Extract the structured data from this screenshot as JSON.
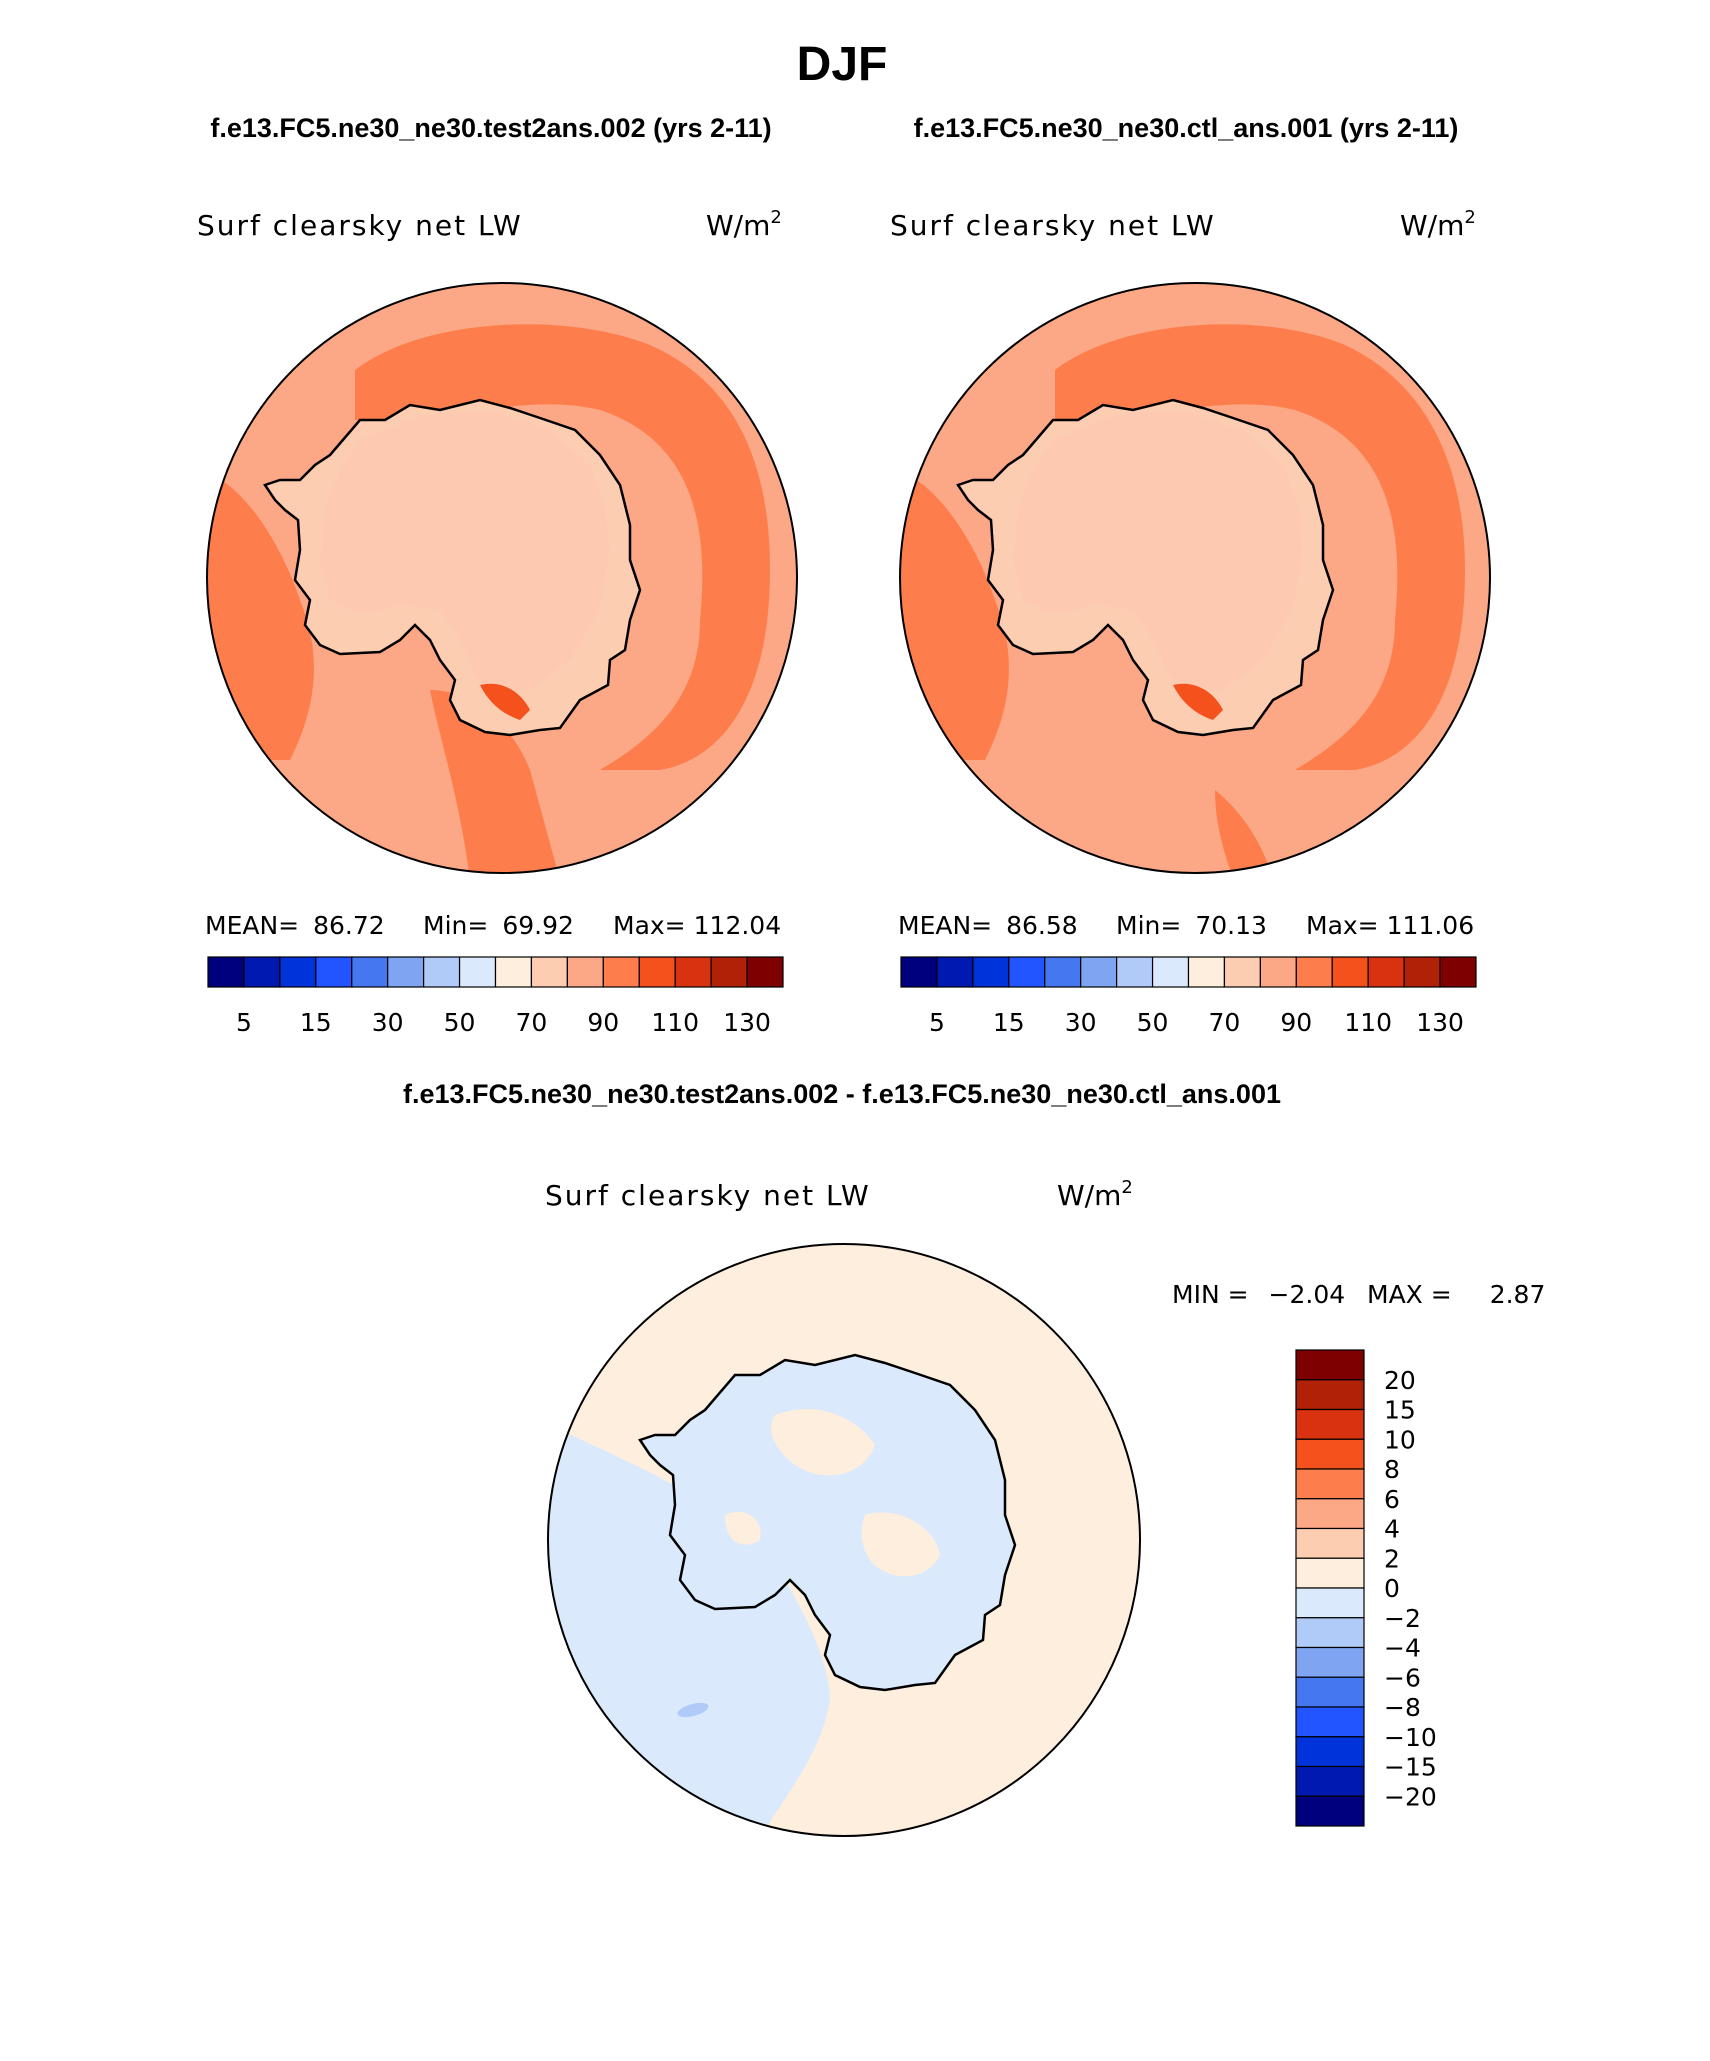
{
  "figure": {
    "season": "DJF",
    "case1": "f.e13.FC5.ne30_ne30.test2ans.002 (yrs 2-11)",
    "case2": "f.e13.FC5.ne30_ne30.ctl_ans.001 (yrs 2-11)",
    "diff_title": "f.e13.FC5.ne30_ne30.test2ans.002 - f.e13.FC5.ne30_ne30.ctl_ans.001"
  },
  "panels": [
    {
      "variable": "Surf clearsky net LW",
      "units_base": "W/m",
      "units_exp": "2",
      "mean_label": "MEAN=",
      "mean": "86.72",
      "min_label": "Min=",
      "min": "69.92",
      "max_label": "Max=",
      "max": "112.04"
    },
    {
      "variable": "Surf clearsky net LW",
      "units_base": "W/m",
      "units_exp": "2",
      "mean_label": "MEAN=",
      "mean": "86.58",
      "min_label": "Min=",
      "min": "70.13",
      "max_label": "Max=",
      "max": "111.06"
    },
    {
      "variable": "Surf clearsky net LW",
      "units_base": "W/m",
      "units_exp": "2",
      "min_label": "MIN =",
      "min": "−2.04",
      "max_label": "MAX =",
      "max": "2.87"
    }
  ],
  "abs_colorbar": {
    "colors": [
      "#00007f",
      "#0019b0",
      "#0033d9",
      "#2255ff",
      "#4477f0",
      "#7fa5f2",
      "#b0cbf7",
      "#daeafc",
      "#feeede",
      "#fdcdb2",
      "#fca785",
      "#fd7e4c",
      "#f4511c",
      "#d93210",
      "#b02107",
      "#7f0000"
    ],
    "labels": [
      "5",
      "15",
      "30",
      "50",
      "70",
      "90",
      "110",
      "130"
    ]
  },
  "diff_colorbar": {
    "colors": [
      "#7f0000",
      "#b02107",
      "#d93210",
      "#f4511c",
      "#fd7e4c",
      "#fca785",
      "#fdcdb2",
      "#feeede",
      "#daeafc",
      "#b0cbf7",
      "#7fa5f2",
      "#4477f0",
      "#2255ff",
      "#0033d9",
      "#0019b0",
      "#00007f"
    ],
    "labels": [
      "20",
      "15",
      "10",
      "8",
      "6",
      "4",
      "2",
      "0",
      "−2",
      "−4",
      "−6",
      "−8",
      "−10",
      "−15",
      "−20"
    ]
  },
  "colors": {
    "bin_50_70": "#daeafc",
    "bin_70_90": "#fdcdb2",
    "bin_90_110": "#fca785",
    "bin_110_130": "#fd7e4c",
    "bin_130_150": "#f4511c",
    "diff_pos": "#feeede",
    "diff_neg": "#daeafc",
    "diff_neg2": "#b0cbf7",
    "diff_pos2": "#fdcdb2"
  }
}
